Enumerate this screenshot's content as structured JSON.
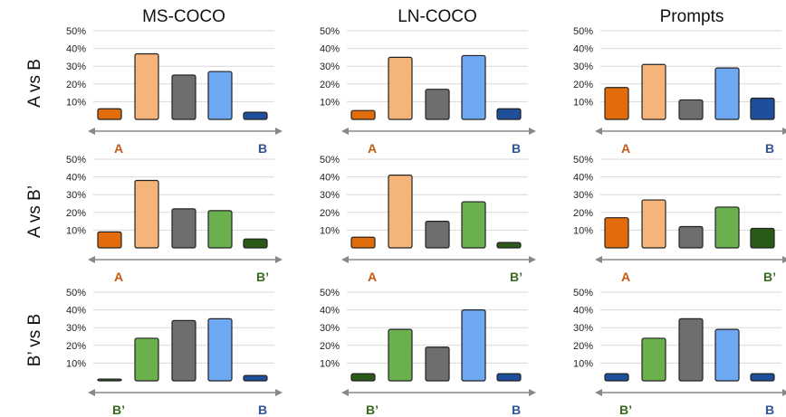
{
  "colors": {
    "a": "#e36c0a",
    "a_light": "#f5b57a",
    "tie": "#6e6e6e",
    "b": "#6fa8f2",
    "b_strong": "#1f4e9a",
    "b_prime": "#6ab04c",
    "b_prime_strong": "#2a5a18",
    "label_a": "#c55a11",
    "label_b": "#2f5597",
    "label_b_prime": "#3a6a1e"
  },
  "columns": [
    "MS-COCO",
    "LN-COCO",
    "Prompts"
  ],
  "rows": [
    "A vs B",
    "A vs B’",
    "B’ vs B"
  ],
  "y_ticks": [
    "10%",
    "20%",
    "30%",
    "40%",
    "50%"
  ],
  "chart_data": [
    {
      "type": "bar",
      "column": "MS-COCO",
      "row": "A vs B",
      "ylim": [
        0,
        50
      ],
      "values": [
        6,
        37,
        25,
        27,
        4
      ],
      "left_label": "A",
      "right_label": "B",
      "palette": [
        "a",
        "a_light",
        "tie",
        "b",
        "b_strong"
      ]
    },
    {
      "type": "bar",
      "column": "LN-COCO",
      "row": "A vs B",
      "ylim": [
        0,
        50
      ],
      "values": [
        5,
        35,
        17,
        36,
        6
      ],
      "left_label": "A",
      "right_label": "B",
      "palette": [
        "a",
        "a_light",
        "tie",
        "b",
        "b_strong"
      ]
    },
    {
      "type": "bar",
      "column": "Prompts",
      "row": "A vs B",
      "ylim": [
        0,
        50
      ],
      "values": [
        18,
        31,
        11,
        29,
        12
      ],
      "left_label": "A",
      "right_label": "B",
      "palette": [
        "a",
        "a_light",
        "tie",
        "b",
        "b_strong"
      ]
    },
    {
      "type": "bar",
      "column": "MS-COCO",
      "row": "A vs B’",
      "ylim": [
        0,
        50
      ],
      "values": [
        9,
        38,
        22,
        21,
        5
      ],
      "left_label": "A",
      "right_label": "B’",
      "palette": [
        "a",
        "a_light",
        "tie",
        "b_prime",
        "b_prime_strong"
      ]
    },
    {
      "type": "bar",
      "column": "LN-COCO",
      "row": "A vs B’",
      "ylim": [
        0,
        50
      ],
      "values": [
        6,
        41,
        15,
        26,
        3
      ],
      "left_label": "A",
      "right_label": "B’",
      "palette": [
        "a",
        "a_light",
        "tie",
        "b_prime",
        "b_prime_strong"
      ]
    },
    {
      "type": "bar",
      "column": "Prompts",
      "row": "A vs B’",
      "ylim": [
        0,
        50
      ],
      "values": [
        17,
        27,
        12,
        23,
        11
      ],
      "left_label": "A",
      "right_label": "B’",
      "palette": [
        "a",
        "a_light",
        "tie",
        "b_prime",
        "b_prime_strong"
      ]
    },
    {
      "type": "bar",
      "column": "MS-COCO",
      "row": "B’ vs B",
      "ylim": [
        0,
        50
      ],
      "values": [
        1,
        24,
        34,
        35,
        3
      ],
      "left_label": "B’",
      "right_label": "B",
      "palette": [
        "b_prime_strong",
        "b_prime",
        "tie",
        "b",
        "b_strong"
      ]
    },
    {
      "type": "bar",
      "column": "LN-COCO",
      "row": "B’ vs B",
      "ylim": [
        0,
        50
      ],
      "values": [
        4,
        29,
        19,
        40,
        4
      ],
      "left_label": "B’",
      "right_label": "B",
      "palette": [
        "b_prime_strong",
        "b_prime",
        "tie",
        "b",
        "b_strong"
      ]
    },
    {
      "type": "bar",
      "column": "Prompts",
      "row": "B’ vs B",
      "ylim": [
        0,
        50
      ],
      "values": [
        4,
        24,
        35,
        29,
        4
      ],
      "left_label": "B’",
      "right_label": "B",
      "palette": [
        "b_strong",
        "b_prime",
        "tie",
        "b",
        "b_strong"
      ]
    }
  ]
}
